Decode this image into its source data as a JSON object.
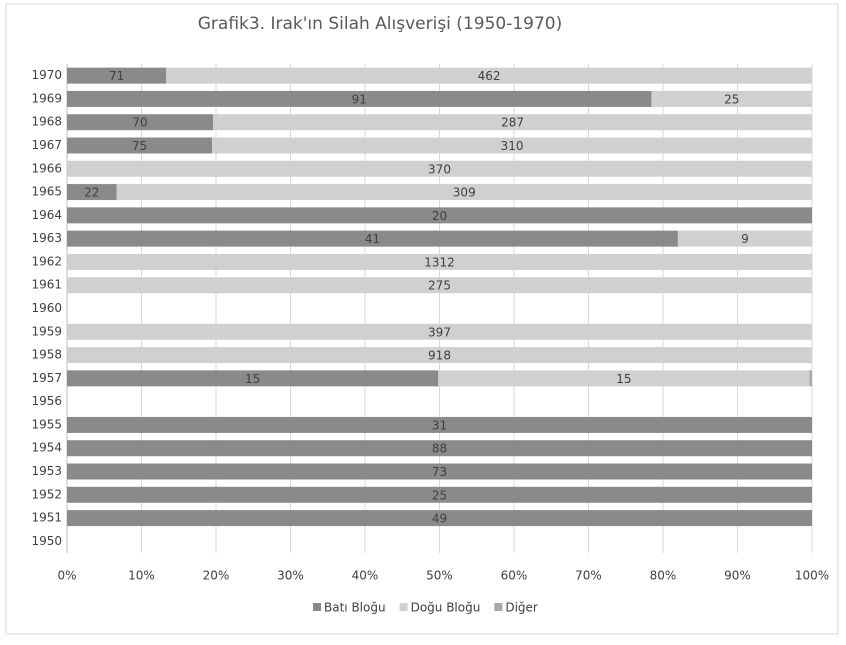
{
  "chart_data": {
    "type": "bar",
    "orientation": "horizontal",
    "stacking": "percent",
    "title": "Grafik3. Irak'ın Silah Alışverişi (1950-1970)",
    "categories": [
      "1950",
      "1951",
      "1952",
      "1953",
      "1954",
      "1955",
      "1956",
      "1957",
      "1958",
      "1959",
      "1960",
      "1961",
      "1962",
      "1963",
      "1964",
      "1965",
      "1966",
      "1967",
      "1968",
      "1969",
      "1970"
    ],
    "series": [
      {
        "name": "Batı Bloğu",
        "color": "#8a8a8a",
        "values": [
          null,
          49,
          25,
          73,
          88,
          31,
          null,
          15,
          null,
          null,
          null,
          null,
          null,
          41,
          20,
          22,
          null,
          75,
          70,
          91,
          71
        ]
      },
      {
        "name": "Doğu Bloğu",
        "color": "#d0d0d0",
        "values": [
          null,
          null,
          null,
          null,
          null,
          null,
          null,
          15,
          918,
          397,
          null,
          275,
          1312,
          9,
          null,
          309,
          370,
          310,
          287,
          25,
          462
        ]
      },
      {
        "name": "Diğer",
        "color": "#a8a8a8",
        "values": [
          null,
          null,
          null,
          null,
          null,
          null,
          null,
          0.1,
          null,
          null,
          null,
          null,
          null,
          null,
          null,
          null,
          null,
          null,
          null,
          null,
          null
        ]
      }
    ],
    "value_labels_shown": [
      "Batı Bloğu",
      "Doğu Bloğu"
    ],
    "xlim": [
      0,
      100
    ],
    "xticks": [
      {
        "value": 0,
        "label": "0%"
      },
      {
        "value": 10,
        "label": "10%"
      },
      {
        "value": 20,
        "label": "20%"
      },
      {
        "value": 30,
        "label": "30%"
      },
      {
        "value": 40,
        "label": "40%"
      },
      {
        "value": 50,
        "label": "50%"
      },
      {
        "value": 60,
        "label": "60%"
      },
      {
        "value": 70,
        "label": "70%"
      },
      {
        "value": 80,
        "label": "80%"
      },
      {
        "value": 90,
        "label": "90%"
      },
      {
        "value": 100,
        "label": "100%"
      }
    ],
    "grid": true,
    "legend": "bottom"
  }
}
